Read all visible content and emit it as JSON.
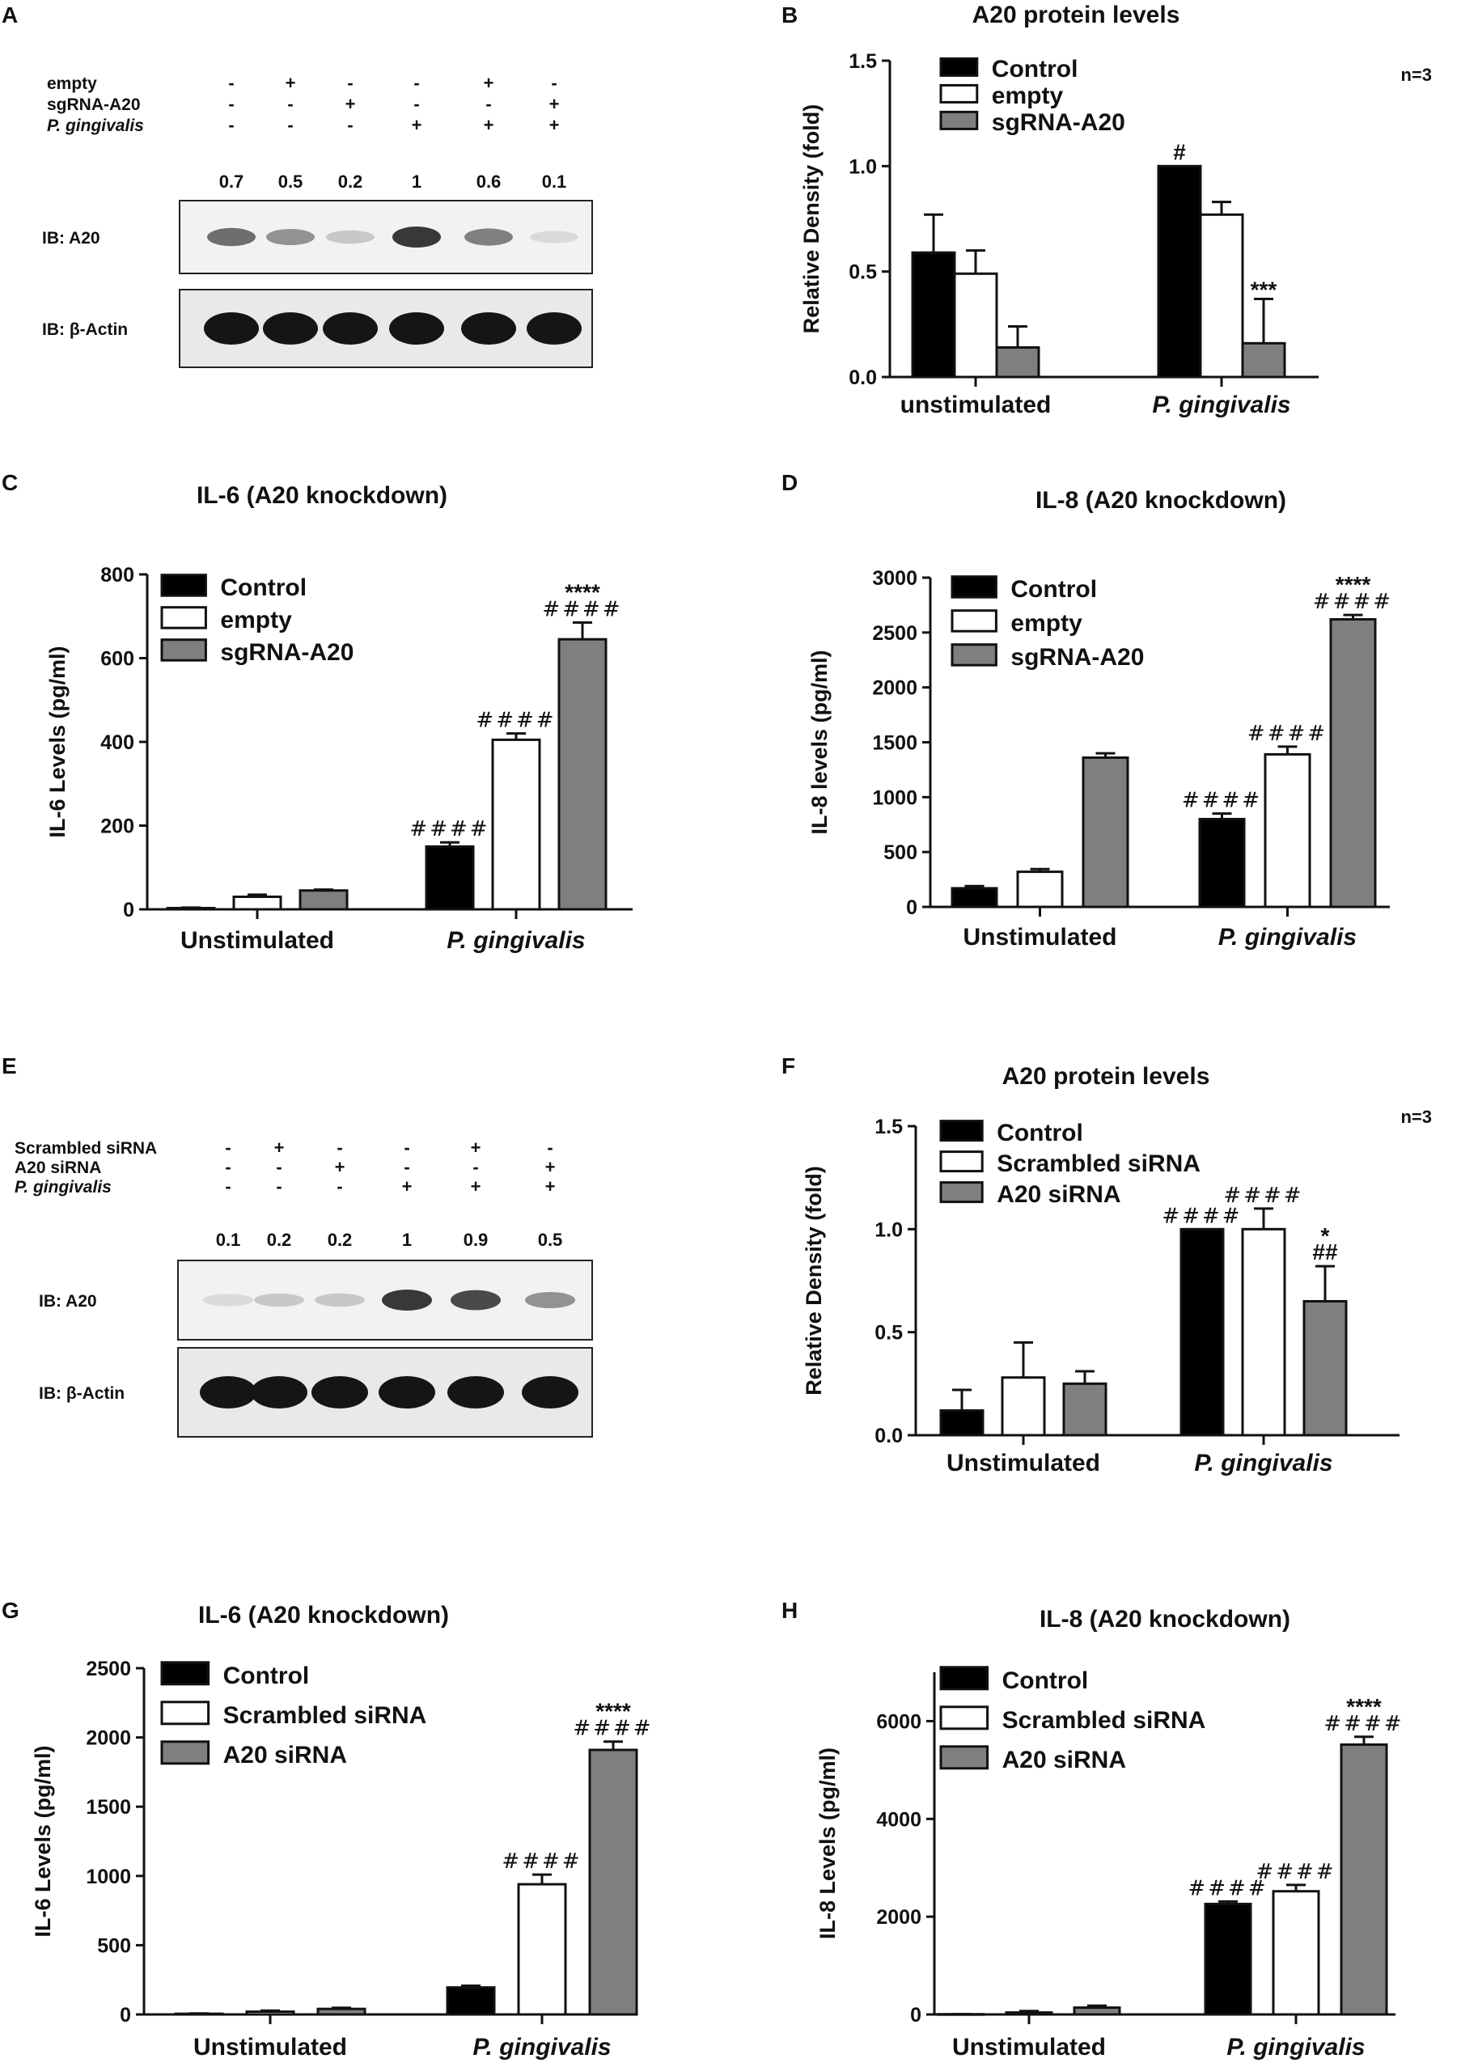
{
  "panel_labels": [
    "A",
    "B",
    "C",
    "D",
    "E",
    "F",
    "G",
    "H"
  ],
  "blots": [
    {
      "rows": [
        {
          "label": "empty",
          "italic": false,
          "signs": [
            "-",
            "+",
            "-",
            "-",
            "+",
            "-"
          ]
        },
        {
          "label": "sgRNA-A20",
          "italic": false,
          "signs": [
            "-",
            "-",
            "+",
            "-",
            "-",
            "+"
          ]
        },
        {
          "label": "P. gingivalis",
          "italic": true,
          "signs": [
            "-",
            "-",
            "-",
            "+",
            "+",
            "+"
          ]
        }
      ],
      "densities": [
        "0.7",
        "0.5",
        "0.2",
        "1",
        "0.6",
        "0.1"
      ],
      "a20_intensity": [
        0.7,
        0.5,
        0.2,
        1,
        0.6,
        0.1
      ],
      "ib_labels": [
        "IB: A20",
        "IB: β-Actin"
      ]
    },
    {
      "rows": [
        {
          "label": "Scrambled siRNA",
          "italic": false,
          "signs": [
            "-",
            "+",
            "-",
            "-",
            "+",
            "-"
          ]
        },
        {
          "label": "A20 siRNA",
          "italic": false,
          "signs": [
            "-",
            "-",
            "+",
            "-",
            "-",
            "+"
          ]
        },
        {
          "label": "P. gingivalis",
          "italic": true,
          "signs": [
            "-",
            "-",
            "-",
            "+",
            "+",
            "+"
          ]
        }
      ],
      "densities": [
        "0.1",
        "0.2",
        "0.2",
        "1",
        "0.9",
        "0.5"
      ],
      "a20_intensity": [
        0.1,
        0.2,
        0.2,
        1,
        0.9,
        0.5
      ],
      "ib_labels": [
        "IB: A20",
        "IB: β-Actin"
      ]
    }
  ],
  "colors": {
    "control": "#000000",
    "empty": "#ffffff",
    "knockdown": "#7f7f7f"
  },
  "chart_data": [
    {
      "type": "bar",
      "panel": "B",
      "title": "A20 protein levels",
      "note": "n=3",
      "xlabel": "",
      "ylabel": "Relative Density (fold)",
      "ylim": [
        0,
        1.5
      ],
      "yticks": [
        "0.0",
        "0.5",
        "1.0",
        "1.5"
      ],
      "categories": [
        "unstimulated",
        "P. gingivalis"
      ],
      "italic_categories": [
        false,
        true
      ],
      "series": [
        {
          "name": "Control",
          "values": [
            0.59,
            1.0
          ],
          "errors": [
            0.18,
            0
          ]
        },
        {
          "name": "empty",
          "values": [
            0.49,
            0.77
          ],
          "errors": [
            0.11,
            0.06
          ]
        },
        {
          "name": "sgRNA-A20",
          "values": [
            0.14,
            0.16
          ],
          "errors": [
            0.1,
            0.21
          ]
        }
      ],
      "annotations": [
        [
          [],
          [
            "#"
          ]
        ],
        [
          [],
          []
        ],
        [
          [],
          [
            "***"
          ]
        ]
      ]
    },
    {
      "type": "bar",
      "panel": "C",
      "title": "IL-6 (A20 knockdown)",
      "xlabel": "",
      "ylabel": "IL-6 Levels (pg/ml)",
      "ylim": [
        0,
        800
      ],
      "yticks": [
        "0",
        "200",
        "400",
        "600",
        "800"
      ],
      "categories": [
        "Unstimulated",
        "P. gingivalis"
      ],
      "italic_categories": [
        false,
        true
      ],
      "series": [
        {
          "name": "Control",
          "values": [
            3,
            150
          ],
          "errors": [
            1,
            10
          ]
        },
        {
          "name": "empty",
          "values": [
            30,
            405
          ],
          "errors": [
            5,
            15
          ]
        },
        {
          "name": "sgRNA-A20",
          "values": [
            45,
            645
          ],
          "errors": [
            2,
            40
          ]
        }
      ],
      "annotations": [
        [
          [],
          [
            "####"
          ]
        ],
        [
          [],
          [
            "####"
          ]
        ],
        [
          [],
          [
            "****",
            "####"
          ]
        ]
      ]
    },
    {
      "type": "bar",
      "panel": "D",
      "title": "IL-8 (A20 knockdown)",
      "xlabel": "",
      "ylabel": "IL-8 levels (pg/ml)",
      "ylim": [
        0,
        3000
      ],
      "yticks": [
        "0",
        "500",
        "1000",
        "1500",
        "2000",
        "2500",
        "3000"
      ],
      "categories": [
        "Unstimulated",
        "P. gingivalis"
      ],
      "italic_categories": [
        false,
        true
      ],
      "series": [
        {
          "name": "Control",
          "values": [
            170,
            800
          ],
          "errors": [
            20,
            50
          ]
        },
        {
          "name": "empty",
          "values": [
            320,
            1390
          ],
          "errors": [
            25,
            70
          ]
        },
        {
          "name": "sgRNA-A20",
          "values": [
            1360,
            2620
          ],
          "errors": [
            40,
            40
          ]
        }
      ],
      "annotations": [
        [
          [],
          [
            "####"
          ]
        ],
        [
          [],
          [
            "####"
          ]
        ],
        [
          [],
          [
            "****",
            "####"
          ]
        ]
      ]
    },
    {
      "type": "bar",
      "panel": "F",
      "title": "A20 protein levels",
      "note": "n=3",
      "xlabel": "",
      "ylabel": "Relative Density (fold)",
      "ylim": [
        0,
        1.5
      ],
      "yticks": [
        "0.0",
        "0.5",
        "1.0",
        "1.5"
      ],
      "categories": [
        "Unstimulated",
        "P. gingivalis"
      ],
      "italic_categories": [
        false,
        true
      ],
      "series": [
        {
          "name": "Control",
          "values": [
            0.12,
            1.0
          ],
          "errors": [
            0.1,
            0
          ]
        },
        {
          "name": "Scrambled siRNA",
          "values": [
            0.28,
            1.0
          ],
          "errors": [
            0.17,
            0.1
          ]
        },
        {
          "name": "A20 siRNA",
          "values": [
            0.25,
            0.65
          ],
          "errors": [
            0.06,
            0.17
          ]
        }
      ],
      "annotations": [
        [
          [],
          [
            "####"
          ]
        ],
        [
          [],
          [
            "####"
          ]
        ],
        [
          [],
          [
            "*",
            "##"
          ]
        ]
      ]
    },
    {
      "type": "bar",
      "panel": "G",
      "title": "IL-6 (A20 knockdown)",
      "xlabel": "",
      "ylabel": "IL-6 Levels (pg/ml)",
      "ylim": [
        0,
        2500
      ],
      "yticks": [
        "0",
        "500",
        "1000",
        "1500",
        "2000",
        "2500"
      ],
      "categories": [
        "Unstimulated",
        "P. gingivalis"
      ],
      "italic_categories": [
        false,
        true
      ],
      "series": [
        {
          "name": "Control",
          "values": [
            5,
            195
          ],
          "errors": [
            2,
            12
          ]
        },
        {
          "name": "Scrambled siRNA",
          "values": [
            20,
            940
          ],
          "errors": [
            8,
            70
          ]
        },
        {
          "name": "A20 siRNA",
          "values": [
            40,
            1910
          ],
          "errors": [
            8,
            60
          ]
        }
      ],
      "annotations": [
        [
          [],
          []
        ],
        [
          [],
          [
            "####"
          ]
        ],
        [
          [],
          [
            "****",
            "####"
          ]
        ]
      ]
    },
    {
      "type": "bar",
      "panel": "H",
      "title": "IL-8 (A20 knockdown)",
      "xlabel": "",
      "ylabel": "IL-8 Levels (pg/ml)",
      "ylim": [
        0,
        7000
      ],
      "yticks": [
        "0",
        "2000",
        "4000",
        "6000"
      ],
      "categories": [
        "Unstimulated",
        "P. gingivalis"
      ],
      "italic_categories": [
        false,
        true
      ],
      "series": [
        {
          "name": "Control",
          "values": [
            5,
            2260
          ],
          "errors": [
            2,
            50
          ]
        },
        {
          "name": "Scrambled siRNA",
          "values": [
            40,
            2520
          ],
          "errors": [
            30,
            130
          ]
        },
        {
          "name": "A20 siRNA",
          "values": [
            140,
            5520
          ],
          "errors": [
            40,
            160
          ]
        }
      ],
      "annotations": [
        [
          [],
          [
            "####"
          ]
        ],
        [
          [],
          [
            "####"
          ]
        ],
        [
          [],
          [
            "****",
            "####"
          ]
        ]
      ]
    }
  ]
}
